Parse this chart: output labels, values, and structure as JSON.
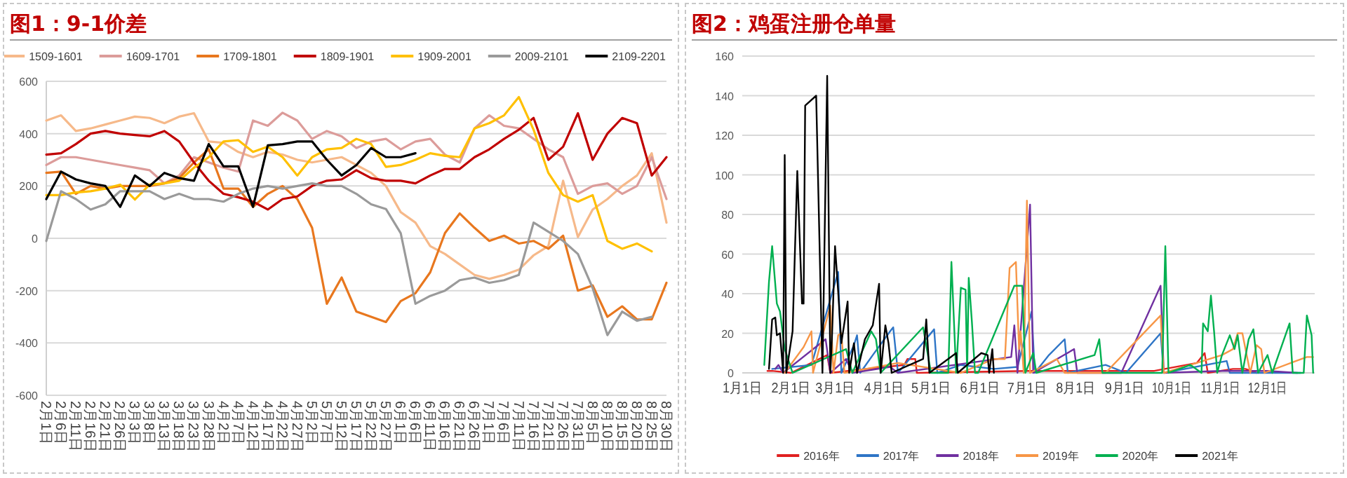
{
  "chart_data": [
    {
      "type": "line",
      "title": "图1：9-1价差",
      "legend": "top",
      "grid": "y",
      "ylim": [
        -600,
        600
      ],
      "yticks": [
        -600,
        -400,
        -200,
        0,
        200,
        400,
        600
      ],
      "categories": [
        "2月1日",
        "2月6日",
        "2月11日",
        "2月16日",
        "2月21日",
        "2月26日",
        "3月3日",
        "3月8日",
        "3月13日",
        "3月18日",
        "3月23日",
        "3月28日",
        "4月2日",
        "4月7日",
        "4月12日",
        "4月17日",
        "4月22日",
        "4月27日",
        "5月2日",
        "5月7日",
        "5月12日",
        "5月17日",
        "5月22日",
        "5月27日",
        "6月1日",
        "6月6日",
        "6月11日",
        "6月16日",
        "6月21日",
        "6月26日",
        "7月1日",
        "7月6日",
        "7月11日",
        "7月16日",
        "7月21日",
        "7月26日",
        "7月31日",
        "8月5日",
        "8月10日",
        "8月15日",
        "8月20日",
        "8月25日",
        "8月30日"
      ],
      "series": [
        {
          "name": "1509-1601",
          "color": "#f6b98a",
          "values": [
            450,
            470,
            410,
            420,
            435,
            450,
            465,
            460,
            440,
            465,
            478,
            370,
            365,
            330,
            310,
            330,
            320,
            300,
            290,
            300,
            310,
            280,
            250,
            200,
            100,
            60,
            -30,
            -60,
            -100,
            -140,
            -155,
            -140,
            -120,
            -65,
            -30,
            220,
            5,
            110,
            150,
            200,
            240,
            325,
            60
          ]
        },
        {
          "name": "1609-1701",
          "color": "#dc9c9a",
          "values": [
            280,
            310,
            310,
            300,
            290,
            280,
            270,
            260,
            210,
            240,
            310,
            290,
            270,
            255,
            450,
            430,
            480,
            450,
            380,
            410,
            390,
            345,
            370,
            380,
            340,
            370,
            380,
            320,
            290,
            420,
            470,
            430,
            420,
            380,
            340,
            310,
            170,
            200,
            210,
            170,
            200,
            310,
            150
          ]
        },
        {
          "name": "1709-1801",
          "color": "#e8771e",
          "values": [
            250,
            255,
            170,
            200,
            190,
            200,
            200,
            200,
            210,
            230,
            290,
            340,
            190,
            190,
            120,
            170,
            200,
            150,
            40,
            -250,
            -150,
            -280,
            -300,
            -320,
            -240,
            -210,
            -130,
            20,
            95,
            40,
            -10,
            10,
            -20,
            -10,
            -40,
            10,
            -200,
            -180,
            -300,
            -260,
            -310,
            -310,
            -170
          ]
        },
        {
          "name": "1809-1901",
          "color": "#c00000",
          "values": [
            320,
            325,
            360,
            400,
            410,
            400,
            395,
            390,
            410,
            370,
            290,
            220,
            170,
            157,
            140,
            110,
            150,
            160,
            200,
            220,
            225,
            260,
            230,
            220,
            220,
            210,
            240,
            265,
            265,
            310,
            340,
            380,
            415,
            460,
            300,
            350,
            478,
            300,
            400,
            460,
            440,
            240,
            310
          ]
        },
        {
          "name": "1909-2001",
          "color": "#ffc000",
          "values": [
            165,
            165,
            175,
            180,
            190,
            205,
            148,
            205,
            210,
            220,
            270,
            310,
            370,
            375,
            330,
            350,
            310,
            240,
            310,
            340,
            345,
            380,
            360,
            273,
            280,
            300,
            325,
            315,
            310,
            420,
            440,
            470,
            540,
            415,
            250,
            165,
            140,
            165,
            -10,
            -40,
            -20,
            -50,
            null
          ]
        },
        {
          "name": "2009-2101",
          "color": "#9a9a9a",
          "values": [
            -10,
            180,
            150,
            110,
            130,
            180,
            180,
            180,
            150,
            170,
            150,
            150,
            140,
            170,
            190,
            200,
            190,
            200,
            210,
            200,
            200,
            170,
            130,
            112,
            20,
            -250,
            -220,
            -200,
            -160,
            -150,
            -170,
            -160,
            -140,
            60,
            25,
            -10,
            -60,
            -190,
            -370,
            -280,
            -315,
            -300,
            null
          ]
        },
        {
          "name": "2109-2201",
          "color": "#000000",
          "values": [
            150,
            255,
            225,
            210,
            200,
            120,
            240,
            200,
            250,
            230,
            220,
            360,
            275,
            275,
            120,
            355,
            360,
            370,
            370,
            300,
            240,
            280,
            345,
            310,
            310,
            325,
            null,
            null,
            null,
            null,
            null,
            null,
            null,
            null,
            null,
            null,
            null,
            null,
            null,
            null,
            null,
            null,
            null
          ]
        }
      ]
    },
    {
      "type": "line",
      "title": "图2：鸡蛋注册仓单量",
      "legend": "bottom",
      "grid": "y",
      "ylim": [
        0,
        160
      ],
      "yticks": [
        0,
        20,
        40,
        60,
        80,
        100,
        120,
        140,
        160
      ],
      "xlim": [
        "--01-01",
        "--12-31"
      ],
      "xticks": [
        {
          "value": "--01-01",
          "label": "1月1日"
        },
        {
          "value": "--02-01",
          "label": "2月1日"
        },
        {
          "value": "--03-01",
          "label": "3月1日"
        },
        {
          "value": "--04-01",
          "label": "4月1日"
        },
        {
          "value": "--05-01",
          "label": "5月1日"
        },
        {
          "value": "--06-01",
          "label": "6月1日"
        },
        {
          "value": "--07-01",
          "label": "7月1日"
        },
        {
          "value": "--08-01",
          "label": "8月1日"
        },
        {
          "value": "--09-01",
          "label": "9月1日"
        },
        {
          "value": "--10-01",
          "label": "10月1日"
        },
        {
          "value": "--11-01",
          "label": "11月1日"
        },
        {
          "value": "--12-01",
          "label": "12月1日"
        }
      ],
      "series": [
        {
          "name": "2016年",
          "color": "#e02020",
          "x": [
            "--01-17",
            "--01-20",
            "--02-01",
            "--02-24",
            "--02-26",
            "--04-14",
            "--04-16",
            "--04-21",
            "--04-22",
            "--07-01",
            "--09-20",
            "--10-17",
            "--10-22",
            "--10-24",
            "--11-09",
            "--11-17",
            "--11-24"
          ],
          "values": [
            1,
            1,
            0,
            9,
            0,
            4,
            7,
            7,
            0,
            1,
            1,
            5,
            10,
            0,
            2,
            2,
            0
          ]
        },
        {
          "name": "2017年",
          "color": "#2e75c6",
          "x": [
            "--01-20",
            "--02-14",
            "--03-03",
            "--03-05",
            "--03-13",
            "--03-15",
            "--03-17",
            "--03-25",
            "--04-05",
            "--04-07",
            "--04-10",
            "--05-03",
            "--05-05",
            "--05-20",
            "--06-10",
            "--06-25",
            "--07-04",
            "--07-06",
            "--07-15",
            "--07-25",
            "--07-27",
            "--08-20",
            "--09-02",
            "--09-24",
            "--09-26",
            "--11-05",
            "--11-07",
            "--12-22"
          ],
          "values": [
            2,
            4,
            51,
            0,
            14,
            19,
            0,
            9,
            21,
            23,
            0,
            22,
            0,
            4,
            2,
            3,
            31,
            0,
            9,
            17,
            0,
            4,
            0,
            20,
            0,
            6,
            0,
            0
          ]
        },
        {
          "name": "2018年",
          "color": "#7030a0",
          "x": [
            "--01-22",
            "--01-24",
            "--01-27",
            "--02-23",
            "--02-26",
            "--03-08",
            "--03-12",
            "--04-05",
            "--04-10",
            "--06-21",
            "--06-23",
            "--06-25",
            "--07-03",
            "--07-05",
            "--07-31",
            "--08-02",
            "--08-30",
            "--09-24",
            "--09-26",
            "--11-01",
            "--12-01",
            "--12-20"
          ],
          "values": [
            2,
            4,
            0,
            17,
            0,
            7,
            0,
            3,
            0,
            8,
            24,
            0,
            85,
            0,
            12,
            0,
            0,
            44,
            0,
            1,
            1,
            0
          ]
        },
        {
          "name": "2019年",
          "color": "#f79646",
          "x": [
            "--01-28",
            "--02-09",
            "--02-14",
            "--02-15",
            "--02-26",
            "--02-28",
            "--03-03",
            "--03-05",
            "--03-07",
            "--04-10",
            "--05-20",
            "--06-10",
            "--06-17",
            "--06-20",
            "--06-24",
            "--06-26",
            "--06-27",
            "--06-29",
            "--07-01",
            "--07-03",
            "--07-20",
            "--07-25",
            "--08-20",
            "--09-24",
            "--09-26",
            "--10-13",
            "--11-02",
            "--11-09",
            "--11-12",
            "--11-15",
            "--11-20",
            "--11-24",
            "--11-27",
            "--11-29",
            "--12-19",
            "--12-26",
            "--12-30"
          ],
          "values": [
            0,
            13,
            21,
            0,
            34,
            0,
            19,
            20,
            0,
            5,
            0,
            7,
            7,
            53,
            56,
            12,
            21,
            0,
            87,
            0,
            7,
            0,
            0,
            29,
            0,
            4,
            9,
            12,
            20,
            20,
            0,
            14,
            12,
            0,
            6,
            8,
            8
          ]
        },
        {
          "name": "2020年",
          "color": "#00b050",
          "x": [
            "--01-15",
            "--01-18",
            "--01-20",
            "--01-23",
            "--01-25",
            "--01-28",
            "--02-02",
            "--03-08",
            "--03-12",
            "--03-24",
            "--03-27",
            "--03-30",
            "--04-26",
            "--05-01",
            "--05-12",
            "--05-14",
            "--05-17",
            "--05-20",
            "--05-23",
            "--05-24",
            "--05-25",
            "--05-27",
            "--05-29",
            "--05-31",
            "--06-23",
            "--06-28",
            "--06-30",
            "--07-05",
            "--07-07",
            "--08-13",
            "--08-16",
            "--08-18",
            "--09-25",
            "--09-27",
            "--09-29",
            "--10-13",
            "--10-20",
            "--10-21",
            "--10-24",
            "--10-26",
            "--10-28",
            "--10-30",
            "--11-02",
            "--11-07",
            "--11-10",
            "--11-12",
            "--11-15",
            "--11-19",
            "--11-22",
            "--11-25",
            "--12-01",
            "--12-04",
            "--12-15",
            "--12-17",
            "--12-24",
            "--12-26",
            "--12-29",
            "--12-30"
          ],
          "values": [
            4,
            46,
            64,
            35,
            31,
            12,
            0,
            12,
            0,
            21,
            17,
            0,
            23,
            0,
            0,
            56,
            0,
            43,
            42,
            0,
            48,
            26,
            0,
            0,
            44,
            44,
            0,
            10,
            0,
            9,
            17,
            0,
            0,
            64,
            0,
            4,
            0,
            25,
            21,
            39,
            21,
            0,
            9,
            19,
            12,
            19,
            0,
            17,
            22,
            0,
            9,
            0,
            25,
            0,
            0,
            29,
            19,
            0
          ]
        },
        {
          "name": "2021年",
          "color": "#000000",
          "x": [
            "--01-18",
            "--01-20",
            "--01-22",
            "--01-23",
            "--01-25",
            "--01-27",
            "--01-28",
            "--01-29",
            "--02-02",
            "--02-03",
            "--02-05",
            "--02-08",
            "--02-09",
            "--02-10",
            "--02-17",
            "--02-21",
            "--02-24",
            "--02-26",
            "--02-27",
            "--03-01",
            "--03-03",
            "--03-05",
            "--03-09",
            "--03-10",
            "--03-13",
            "--03-15",
            "--03-20",
            "--03-25",
            "--03-29",
            "--03-30",
            "--04-02",
            "--04-04",
            "--04-06",
            "--04-26",
            "--04-28",
            "--04-30",
            "--05-17",
            "--05-18",
            "--06-02",
            "--06-06",
            "--06-07",
            "--06-09",
            "--06-10"
          ],
          "values": [
            2,
            27,
            28,
            19,
            20,
            0,
            110,
            0,
            21,
            48,
            102,
            35,
            35,
            135,
            140,
            0,
            150,
            0,
            17,
            64,
            41,
            15,
            36,
            0,
            15,
            0,
            17,
            24,
            45,
            0,
            24,
            15,
            0,
            7,
            27,
            0,
            10,
            0,
            10,
            9,
            0,
            12,
            0
          ]
        }
      ]
    }
  ]
}
